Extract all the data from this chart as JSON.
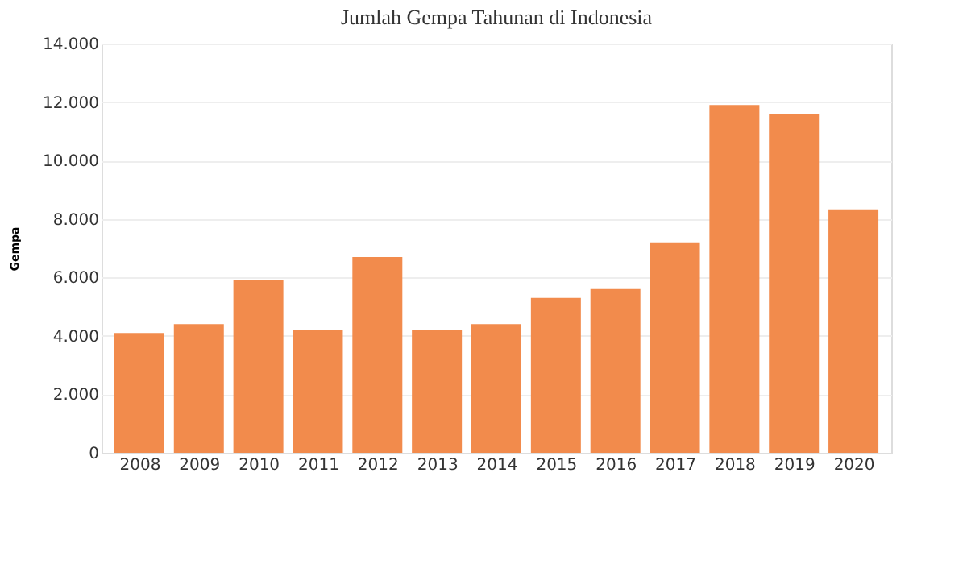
{
  "chart_data": {
    "type": "bar",
    "title": "Jumlah Gempa Tahunan di Indonesia",
    "ylabel": "Gempa",
    "categories": [
      "2008",
      "2009",
      "2010",
      "2011",
      "2012",
      "2013",
      "2014",
      "2015",
      "2016",
      "2017",
      "2018",
      "2019",
      "2020"
    ],
    "values": [
      4100,
      4400,
      5900,
      4200,
      6700,
      4200,
      4400,
      5300,
      5600,
      7200,
      11900,
      11600,
      8300
    ],
    "color": "#f28b4c",
    "ylim": [
      0,
      14000
    ],
    "yticks": [
      0,
      {
        "value": 2000,
        "label": "2.000"
      },
      {
        "value": 4000,
        "label": "4.000"
      },
      {
        "value": 6000,
        "label": "6.000"
      },
      {
        "value": 8000,
        "label": "8.000"
      },
      {
        "value": 10000,
        "label": "10.000"
      },
      {
        "value": 12000,
        "label": "12.000"
      },
      {
        "value": 14000,
        "label": "14.000"
      }
    ],
    "grid": "y"
  }
}
